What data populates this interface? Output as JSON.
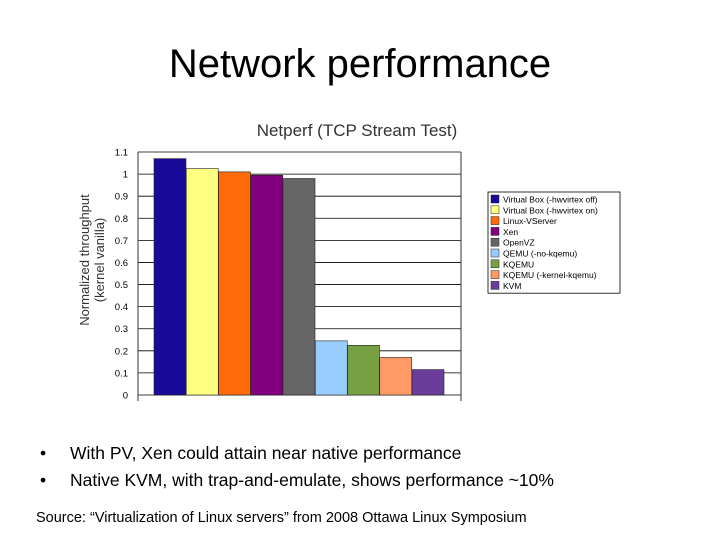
{
  "slide": {
    "title": "Network performance",
    "bullets": [
      "With PV, Xen could attain near native performance",
      "Native KVM, with trap-and-emulate, shows performance ~10%"
    ],
    "bullet_marker": "•",
    "source": "Source: “Virtualization of Linux servers” from 2008 Ottawa Linux Symposium"
  },
  "chart_data": {
    "type": "bar",
    "title": "Netperf (TCP Stream Test)",
    "ylabel_lines": [
      "Normalized throughput",
      "(kernel vanilla)"
    ],
    "xlabel": "",
    "ylim": [
      0,
      1.1
    ],
    "yticks": [
      "0",
      "0.1",
      "0.2",
      "0.3",
      "0.4",
      "0.5",
      "0.6",
      "0.7",
      "0.8",
      "0.9",
      "1",
      "1.1"
    ],
    "grid": true,
    "legend_position": "right",
    "series": [
      {
        "name": "Virtual Box (-hwvirtex off)",
        "value": 1.07,
        "color": "#1a0a99"
      },
      {
        "name": "Virtual Box (-hwvirtex on)",
        "value": 1.025,
        "color": "#ffff80"
      },
      {
        "name": "Linux-VServer",
        "value": 1.01,
        "color": "#ff6a0a"
      },
      {
        "name": "Xen",
        "value": 0.995,
        "color": "#800080"
      },
      {
        "name": "OpenVZ",
        "value": 0.98,
        "color": "#666666"
      },
      {
        "name": "QEMU (-no-kqemu)",
        "value": 0.245,
        "color": "#99ccff"
      },
      {
        "name": "KQEMU",
        "value": 0.225,
        "color": "#77a042"
      },
      {
        "name": "KQEMU (-kernel-kqemu)",
        "value": 0.17,
        "color": "#ff9966"
      },
      {
        "name": "KVM",
        "value": 0.115,
        "color": "#6a3d9a"
      }
    ]
  }
}
